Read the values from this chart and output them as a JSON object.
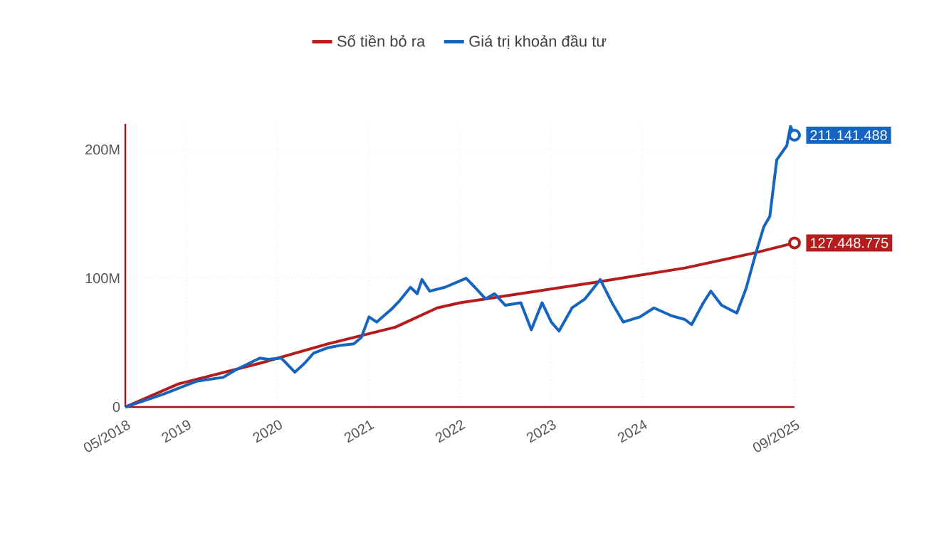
{
  "chart_data": {
    "type": "line",
    "x": [
      "2018-05-01",
      "2018-10-01",
      "2019-02-10",
      "2019-05-28",
      "2019-07-19",
      "2019-10-22",
      "2019-11-25",
      "2020-01-16",
      "2020-03-10",
      "2020-04-18",
      "2020-05-25",
      "2020-07-19",
      "2020-09-13",
      "2020-11-01",
      "2020-12-01",
      "2021-01-01",
      "2021-02-01",
      "2021-04-01",
      "2021-05-01",
      "2021-06-16",
      "2021-07-13",
      "2021-08-01",
      "2021-09-01",
      "2021-11-01",
      "2022-01-25",
      "2022-03-01",
      "2022-04-13",
      "2022-05-19",
      "2022-07-01",
      "2022-09-01",
      "2022-10-13",
      "2022-11-25",
      "2023-01-01",
      "2023-02-01",
      "2023-03-25",
      "2023-05-16",
      "2023-07-16",
      "2023-09-01",
      "2023-10-16",
      "2023-12-22",
      "2024-02-16",
      "2024-04-25",
      "2024-06-19",
      "2024-07-16",
      "2024-09-01",
      "2024-10-01",
      "2024-11-13",
      "2025-01-13",
      "2025-02-19",
      "2025-03-28",
      "2025-05-01",
      "2025-05-25",
      "2025-06-22",
      "2025-08-01",
      "2025-08-16",
      "2025-09-01"
    ],
    "series": [
      {
        "name": "Số tiền bỏ ra",
        "color": "#b71c1c",
        "x": [
          "2018-05-01",
          "2018-12-01",
          "2019-10-22",
          "2020-07-19",
          "2021-04-16",
          "2021-10-01",
          "2022-01-01",
          "2022-10-01",
          "2023-07-01",
          "2024-06-19",
          "2025-04-01",
          "2025-09-01"
        ],
        "values": [
          0,
          18000000,
          34000000,
          49000000,
          62000000,
          77000000,
          81000000,
          89000000,
          97000000,
          108000000,
          120000000,
          127448775
        ],
        "value_labels": [
          null,
          null,
          null,
          null,
          null,
          null,
          null,
          null,
          null,
          null,
          null,
          "127.448.775"
        ]
      },
      {
        "name": "Giá trị khoản đầu tư",
        "color": "#1565c0",
        "values": [
          0,
          10000000,
          20000000,
          23000000,
          29000000,
          38000000,
          37000000,
          38000000,
          27000000,
          34000000,
          42000000,
          46000000,
          48000000,
          49000000,
          54000000,
          70000000,
          66000000,
          76000000,
          82000000,
          93000000,
          88000000,
          99000000,
          90000000,
          93000000,
          100000000,
          93000000,
          84000000,
          88000000,
          79000000,
          81000000,
          60000000,
          81000000,
          66000000,
          59000000,
          77000000,
          84000000,
          99000000,
          81000000,
          66000000,
          70000000,
          77000000,
          71000000,
          68000000,
          64000000,
          81000000,
          90000000,
          79000000,
          73000000,
          92000000,
          118000000,
          140000000,
          148000000,
          192000000,
          203000000,
          218000000,
          211141488
        ],
        "value_labels": [
          null,
          null,
          null,
          null,
          null,
          null,
          null,
          null,
          null,
          null,
          null,
          null,
          null,
          null,
          null,
          null,
          null,
          null,
          null,
          null,
          null,
          null,
          null,
          null,
          null,
          null,
          null,
          null,
          null,
          null,
          null,
          null,
          null,
          null,
          null,
          null,
          null,
          null,
          null,
          null,
          null,
          null,
          null,
          null,
          null,
          null,
          null,
          null,
          null,
          null,
          null,
          null,
          null,
          null,
          null,
          "211.141.488"
        ]
      }
    ],
    "xlim": [
      "2018-05-01",
      "2025-09-01"
    ],
    "xticks": [
      {
        "value": "2018-05-01",
        "label": "05/2018"
      },
      {
        "value": "2019-01-01",
        "label": "2019"
      },
      {
        "value": "2020-01-01",
        "label": "2020"
      },
      {
        "value": "2021-01-01",
        "label": "2021"
      },
      {
        "value": "2022-01-01",
        "label": "2022"
      },
      {
        "value": "2023-01-01",
        "label": "2023"
      },
      {
        "value": "2024-01-01",
        "label": "2024"
      },
      {
        "value": "2025-09-01",
        "label": "09/2025"
      }
    ],
    "ylim": [
      0,
      220000000
    ],
    "yticks": [
      {
        "value": 0,
        "label": "0"
      },
      {
        "value": 100000000,
        "label": "100M"
      },
      {
        "value": 200000000,
        "label": "200M"
      }
    ],
    "grid": true,
    "legend": "top",
    "line_style": "solid"
  }
}
